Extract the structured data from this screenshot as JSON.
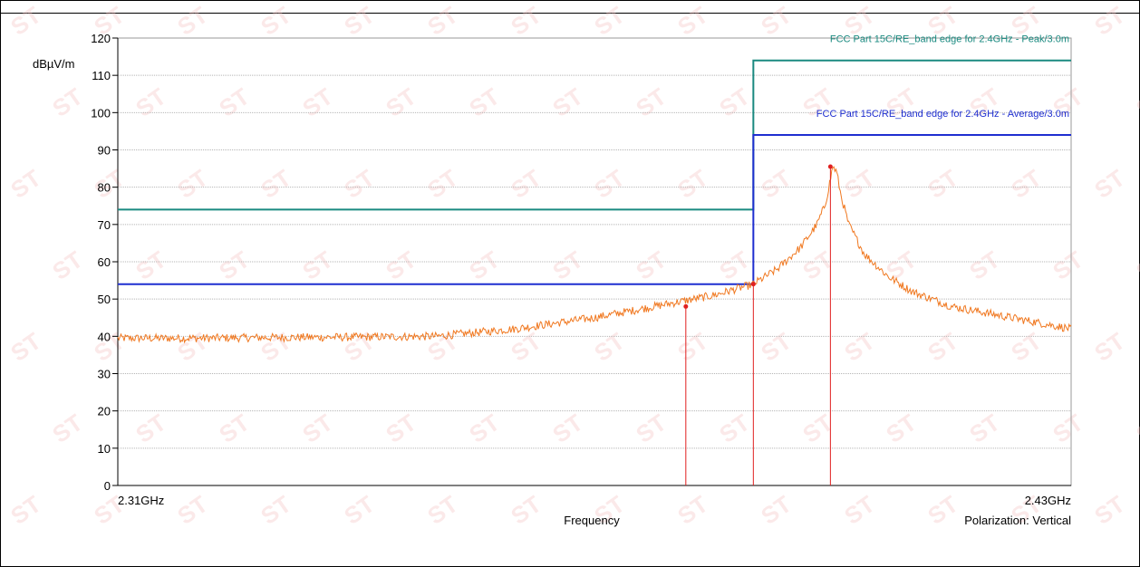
{
  "chart_data": {
    "type": "line",
    "title": "",
    "ylabel": "dBµV/m",
    "xlabel": "Frequency",
    "polarization": "Polarization: Vertical",
    "x_start_label": "2.31GHz",
    "x_end_label": "2.43GHz",
    "xlim_ghz": [
      2.31,
      2.43
    ],
    "ylim": [
      0,
      120
    ],
    "y_ticks": [
      0,
      10,
      20,
      30,
      40,
      50,
      60,
      70,
      80,
      90,
      100,
      110,
      120
    ],
    "grid": true,
    "limits": [
      {
        "name": "FCC Part 15C/RE_band edge for 2.4GHz  - Peak/3.0m",
        "color": "#1a8a80",
        "segments": [
          {
            "x": [
              2.31,
              2.39
            ],
            "y": 74
          },
          {
            "x": [
              2.39,
              2.43
            ],
            "y": 114
          }
        ]
      },
      {
        "name": "FCC Part 15C/RE_band edge for 2.4GHz  - Average/3.0m",
        "color": "#1f2fd0",
        "segments": [
          {
            "x": [
              2.31,
              2.39
            ],
            "y": 54
          },
          {
            "x": [
              2.39,
              2.43
            ],
            "y": 94
          }
        ]
      }
    ],
    "series": [
      {
        "color": "#f07820",
        "x": [
          2.31,
          2.32,
          2.33,
          2.34,
          2.35,
          2.355,
          2.36,
          2.365,
          2.37,
          2.375,
          2.38,
          2.385,
          2.39,
          2.393,
          2.396,
          2.398,
          2.399,
          2.3995,
          2.4,
          2.4005,
          2.401,
          2.402,
          2.404,
          2.407,
          2.41,
          2.415,
          2.42,
          2.425,
          2.43
        ],
        "y": [
          39.5,
          39.5,
          39.7,
          39.8,
          40.0,
          41.0,
          42.0,
          43.5,
          45.0,
          47.0,
          49.0,
          51.0,
          54.0,
          58.0,
          64.0,
          70.0,
          75.0,
          80.0,
          85.5,
          84.0,
          78.0,
          70.0,
          62.0,
          56.0,
          52.0,
          48.0,
          46.0,
          44.0,
          42.0
        ]
      }
    ],
    "markers": [
      {
        "x": 2.3815,
        "y": 48
      },
      {
        "x": 2.39,
        "y": 54
      },
      {
        "x": 2.3997,
        "y": 85.5
      }
    ],
    "marker_color": "#e02020"
  },
  "watermark_text": "ST"
}
